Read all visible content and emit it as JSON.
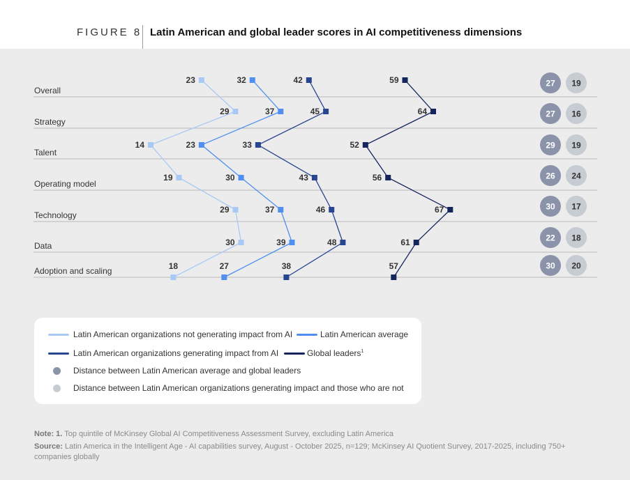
{
  "figure": {
    "label": "FIGURE 8",
    "title": "Latin American and global leader scores in AI competitiveness dimensions"
  },
  "colors": {
    "not_impact": "#a9c9f5",
    "la_average": "#4f8ff0",
    "impact": "#27468f",
    "global": "#13255c",
    "dark_circle": "#8a93a9",
    "light_circle": "#c7ccd3",
    "grid": "#b9b9b9"
  },
  "chart_data": {
    "type": "line",
    "orientation": "horizontal-categories",
    "categories": [
      "Overall",
      "Strategy",
      "Talent",
      "Operating model",
      "Technology",
      "Data",
      "Adoption and scaling"
    ],
    "xlim": [
      0,
      80
    ],
    "series": [
      {
        "name": "Latin American organizations not generating impact from AI",
        "color_key": "not_impact",
        "values": [
          23,
          29,
          14,
          19,
          29,
          30,
          18
        ]
      },
      {
        "name": "Latin American average",
        "color_key": "la_average",
        "values": [
          32,
          37,
          23,
          30,
          37,
          39,
          27
        ]
      },
      {
        "name": "Latin American organizations generating impact from AI",
        "color_key": "impact",
        "values": [
          42,
          45,
          33,
          43,
          46,
          48,
          38
        ]
      },
      {
        "name": "Global leaders",
        "color_key": "global",
        "values": [
          59,
          64,
          52,
          56,
          67,
          61,
          57
        ]
      }
    ],
    "gap_avg_vs_global": [
      27,
      27,
      29,
      26,
      30,
      22,
      30
    ],
    "gap_impact_vs_not": [
      19,
      16,
      19,
      24,
      17,
      18,
      20
    ]
  },
  "legend": {
    "not_impact": "Latin American organizations not generating impact from AI",
    "la_average": "Latin American average",
    "impact": "Latin American organizations generating impact from AI",
    "global": "Global leaders",
    "global_sup": "1",
    "dark_circle": "Distance between Latin American average and global leaders",
    "light_circle": "Distance between Latin American organizations generating impact and those who are not"
  },
  "notes": {
    "note_label": "Note: 1.",
    "note_text": "Top quintile of McKinsey Global AI Competitiveness Assessment Survey, excluding Latin America",
    "source_label": "Source:",
    "source_text": "Latin America in the Intelligent Age - AI capabilities survey, August - October 2025, n=129; McKinsey AI Quotient Survey, 2017-2025, including 750+ companies globally"
  }
}
